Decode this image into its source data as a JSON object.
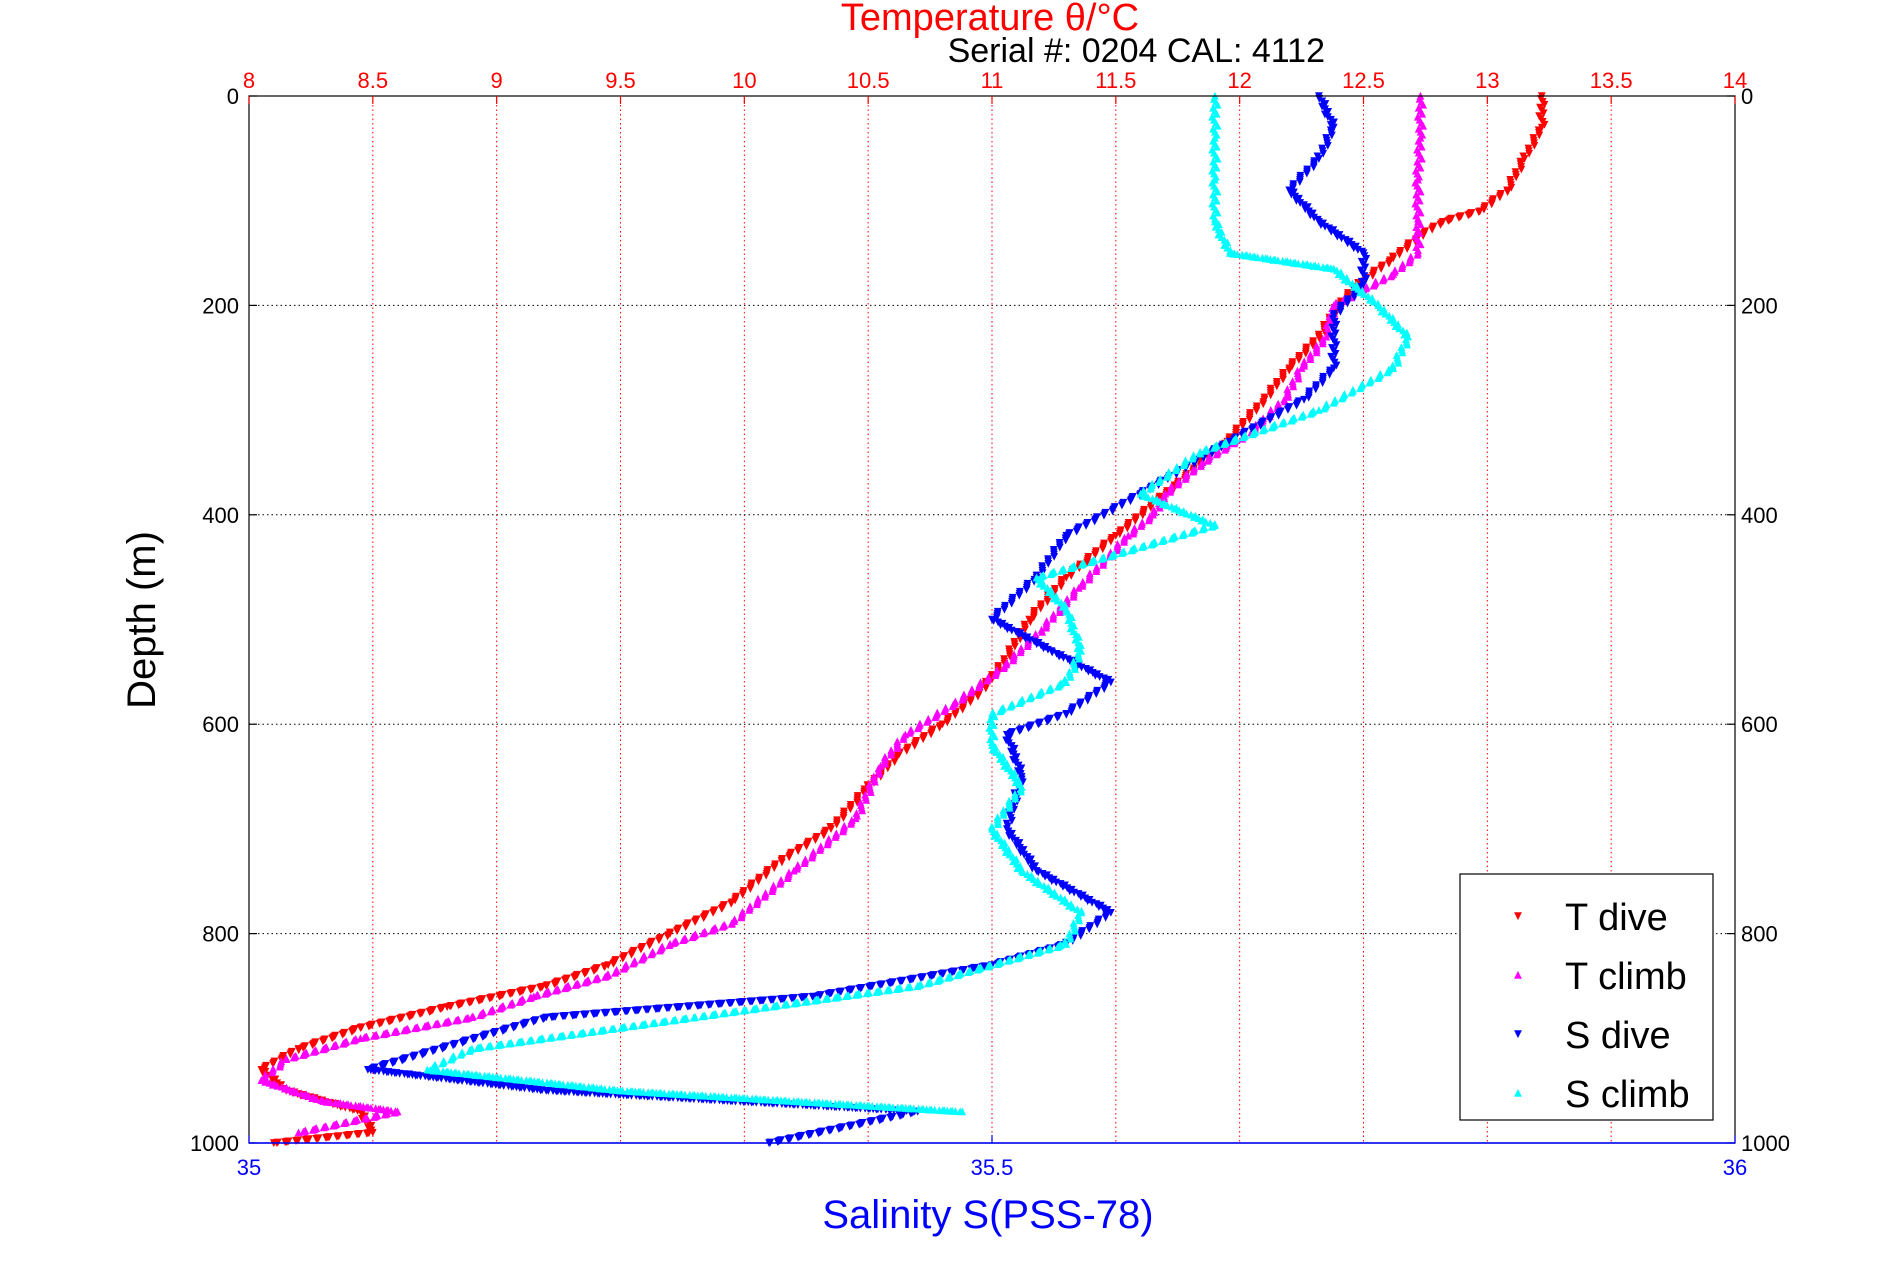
{
  "chart_data": {
    "type": "scatter",
    "title": "Temperature θ/°C",
    "serial_label": "Serial #: 0204  CAL: 4112",
    "top_xlabel": "Temperature θ/°C",
    "bottom_xlabel": "Salinity S(PSS-78)",
    "ylabel": "Depth (m)",
    "temperature_axis": {
      "range": [
        8,
        14
      ],
      "ticks": [
        "8",
        "8.5",
        "9",
        "9.5",
        "10",
        "10.5",
        "11",
        "11.5",
        "12",
        "12.5",
        "13",
        "13.5",
        "14"
      ],
      "color": "#ff0000",
      "grid": true
    },
    "salinity_axis": {
      "range": [
        35,
        36
      ],
      "ticks": [
        "35",
        "35.5",
        "36"
      ],
      "color": "#0000ff"
    },
    "depth_axis": {
      "range": [
        0,
        1000
      ],
      "reversed": true,
      "ticks": [
        "0",
        "200",
        "400",
        "600",
        "800",
        "1000"
      ],
      "grid": true
    },
    "legend": {
      "placement": "bottom-right"
    },
    "series": [
      {
        "name": "T dive",
        "axis": "temperature",
        "color": "#ff0000",
        "marker": "triangle-down",
        "points": [
          [
            13.22,
            0
          ],
          [
            13.22,
            30
          ],
          [
            13.15,
            60
          ],
          [
            13.08,
            90
          ],
          [
            12.97,
            110
          ],
          [
            12.82,
            120
          ],
          [
            12.72,
            135
          ],
          [
            12.62,
            155
          ],
          [
            12.48,
            180
          ],
          [
            12.4,
            200
          ],
          [
            12.32,
            230
          ],
          [
            12.2,
            260
          ],
          [
            12.1,
            290
          ],
          [
            11.95,
            330
          ],
          [
            11.75,
            370
          ],
          [
            11.5,
            420
          ],
          [
            11.3,
            460
          ],
          [
            11.15,
            500
          ],
          [
            11.05,
            540
          ],
          [
            10.95,
            570
          ],
          [
            10.8,
            600
          ],
          [
            10.62,
            630
          ],
          [
            10.5,
            660
          ],
          [
            10.35,
            700
          ],
          [
            10.15,
            730
          ],
          [
            9.95,
            770
          ],
          [
            9.7,
            800
          ],
          [
            9.45,
            830
          ],
          [
            9.2,
            850
          ],
          [
            8.8,
            870
          ],
          [
            8.45,
            890
          ],
          [
            8.2,
            910
          ],
          [
            8.05,
            930
          ],
          [
            8.15,
            950
          ],
          [
            8.45,
            970
          ],
          [
            8.5,
            990
          ],
          [
            8.1,
            1000
          ]
        ]
      },
      {
        "name": "T climb",
        "axis": "temperature",
        "color": "#ff00ff",
        "marker": "triangle-up",
        "points": [
          [
            12.73,
            0
          ],
          [
            12.73,
            40
          ],
          [
            12.72,
            80
          ],
          [
            12.72,
            120
          ],
          [
            12.72,
            150
          ],
          [
            12.62,
            170
          ],
          [
            12.5,
            185
          ],
          [
            12.38,
            200
          ],
          [
            12.35,
            230
          ],
          [
            12.25,
            260
          ],
          [
            12.18,
            290
          ],
          [
            12.05,
            320
          ],
          [
            11.85,
            350
          ],
          [
            11.7,
            380
          ],
          [
            11.65,
            400
          ],
          [
            11.55,
            420
          ],
          [
            11.35,
            470
          ],
          [
            11.2,
            510
          ],
          [
            11.05,
            545
          ],
          [
            10.85,
            580
          ],
          [
            10.65,
            610
          ],
          [
            10.55,
            640
          ],
          [
            10.45,
            690
          ],
          [
            10.2,
            740
          ],
          [
            9.95,
            790
          ],
          [
            9.7,
            810
          ],
          [
            9.45,
            840
          ],
          [
            9.15,
            860
          ],
          [
            8.9,
            880
          ],
          [
            8.45,
            900
          ],
          [
            8.15,
            920
          ],
          [
            8.05,
            940
          ],
          [
            8.3,
            960
          ],
          [
            8.6,
            970
          ],
          [
            8.2,
            990
          ]
        ]
      },
      {
        "name": "S dive",
        "axis": "salinity",
        "color": "#0000ff",
        "marker": "triangle-down",
        "points": [
          [
            35.72,
            0
          ],
          [
            35.73,
            30
          ],
          [
            35.72,
            60
          ],
          [
            35.7,
            90
          ],
          [
            35.72,
            120
          ],
          [
            35.75,
            150
          ],
          [
            35.75,
            180
          ],
          [
            35.73,
            210
          ],
          [
            35.73,
            260
          ],
          [
            35.71,
            290
          ],
          [
            35.66,
            330
          ],
          [
            35.6,
            380
          ],
          [
            35.55,
            420
          ],
          [
            35.53,
            460
          ],
          [
            35.5,
            500
          ],
          [
            35.54,
            530
          ],
          [
            35.58,
            560
          ],
          [
            35.55,
            590
          ],
          [
            35.51,
            610
          ],
          [
            35.52,
            650
          ],
          [
            35.51,
            700
          ],
          [
            35.53,
            740
          ],
          [
            35.58,
            780
          ],
          [
            35.55,
            810
          ],
          [
            35.5,
            830
          ],
          [
            35.38,
            860
          ],
          [
            35.2,
            880
          ],
          [
            35.08,
            930
          ],
          [
            35.2,
            950
          ],
          [
            35.45,
            970
          ],
          [
            35.35,
            1000
          ]
        ]
      },
      {
        "name": "S climb",
        "axis": "salinity",
        "color": "#00ffff",
        "marker": "triangle-up",
        "points": [
          [
            35.65,
            0
          ],
          [
            35.65,
            40
          ],
          [
            35.65,
            80
          ],
          [
            35.65,
            120
          ],
          [
            35.66,
            150
          ],
          [
            35.73,
            165
          ],
          [
            35.76,
            200
          ],
          [
            35.78,
            230
          ],
          [
            35.77,
            260
          ],
          [
            35.72,
            300
          ],
          [
            35.64,
            340
          ],
          [
            35.6,
            380
          ],
          [
            35.65,
            410
          ],
          [
            35.53,
            460
          ],
          [
            35.55,
            490
          ],
          [
            35.56,
            530
          ],
          [
            35.55,
            560
          ],
          [
            35.5,
            590
          ],
          [
            35.5,
            620
          ],
          [
            35.52,
            660
          ],
          [
            35.5,
            700
          ],
          [
            35.52,
            740
          ],
          [
            35.56,
            780
          ],
          [
            35.55,
            810
          ],
          [
            35.45,
            850
          ],
          [
            35.3,
            880
          ],
          [
            35.15,
            910
          ],
          [
            35.12,
            930
          ],
          [
            35.25,
            950
          ],
          [
            35.48,
            970
          ]
        ]
      }
    ]
  }
}
